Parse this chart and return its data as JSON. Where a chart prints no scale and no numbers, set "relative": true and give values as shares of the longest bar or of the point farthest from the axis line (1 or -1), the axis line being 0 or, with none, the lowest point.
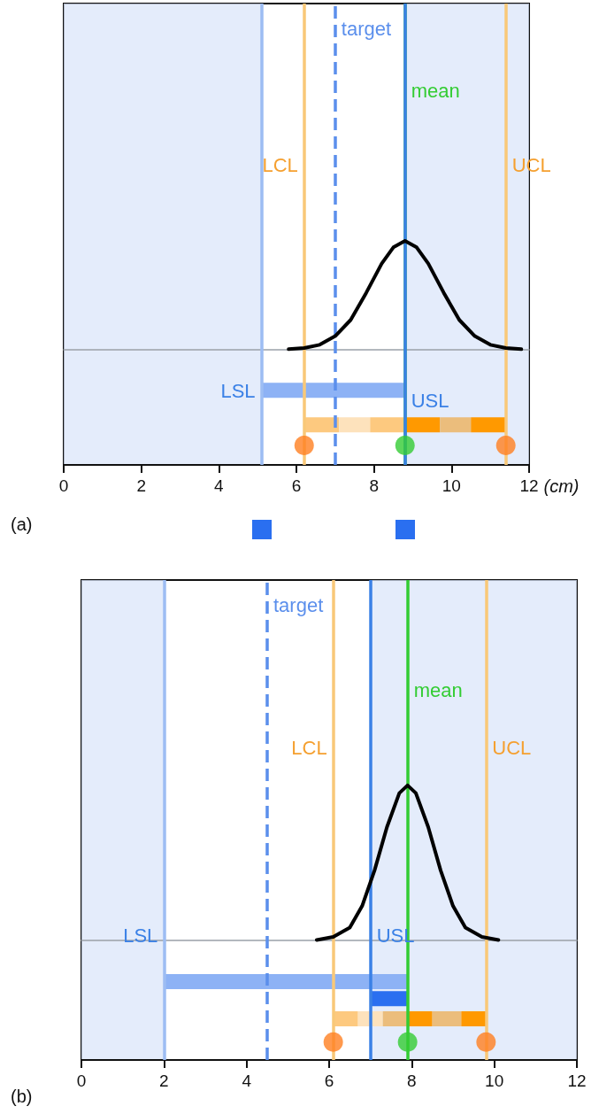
{
  "chart_data": [
    {
      "type": "line",
      "relative": true,
      "xlabel": "(cm)",
      "xlim": [
        0,
        12
      ],
      "xticks": [
        0,
        2,
        4,
        6,
        8,
        10,
        12
      ],
      "tick_labels": "x",
      "grid": false,
      "annotations": [
        "(a)"
      ],
      "bands": [
        {
          "axis": "x",
          "from": 0,
          "to": 5.1,
          "color": "#dbe5fa"
        },
        {
          "axis": "x",
          "from": 8.8,
          "to": 12,
          "color": "#dbe5fa"
        }
      ],
      "ref_lines": [
        {
          "axis": "x",
          "value": 5.1,
          "label": "LSL",
          "color": "#9dbdf3"
        },
        {
          "axis": "x",
          "value": 6.2,
          "label": "LCL",
          "color": "#f9c878"
        },
        {
          "axis": "x",
          "value": 11.4,
          "label": "UCL",
          "color": "#f9c878"
        },
        {
          "axis": "x",
          "value": 7,
          "label": "target",
          "color": "#5b8fec",
          "line_style": "dashed"
        },
        {
          "axis": "x",
          "value": 8.8,
          "label": "mean",
          "color": "#33cc33"
        },
        {
          "axis": "x",
          "value": 8.8,
          "label": "USL",
          "color": "#3a80e6"
        }
      ],
      "series": [
        {
          "color": "#000000",
          "x": [
            5.8,
            6.2,
            6.6,
            7.0,
            7.4,
            7.8,
            8.2,
            8.5,
            8.8,
            9.1,
            9.4,
            9.8,
            10.2,
            10.6,
            11.0,
            11.4,
            11.8
          ],
          "values": [
            0,
            0.01,
            0.04,
            0.12,
            0.27,
            0.52,
            0.79,
            0.94,
            1,
            0.94,
            0.79,
            0.52,
            0.27,
            0.12,
            0.04,
            0.01,
            0
          ]
        },
        {
          "color": "#8db2f5",
          "x": [
            5.1,
            8.8
          ],
          "values": [
            -0.38,
            -0.38
          ]
        },
        {
          "color": "#fdc97f",
          "x": [
            6.2,
            7.1
          ],
          "values": [
            -0.7,
            -0.7
          ]
        },
        {
          "color": "#fde2bc",
          "x": [
            7.1,
            7.9
          ],
          "values": [
            -0.7,
            -0.7
          ]
        },
        {
          "color": "#fdc97f",
          "x": [
            7.9,
            8.8
          ],
          "values": [
            -0.7,
            -0.7
          ]
        },
        {
          "color": "#ff9900",
          "x": [
            8.8,
            9.7
          ],
          "values": [
            -0.7,
            -0.7
          ]
        },
        {
          "color": "#ebbd7c",
          "x": [
            9.7,
            10.5
          ],
          "values": [
            -0.7,
            -0.7
          ]
        },
        {
          "color": "#ff9900",
          "x": [
            10.5,
            11.4
          ],
          "values": [
            -0.7,
            -0.7
          ]
        },
        {
          "type": "scatter",
          "marker": "circle",
          "x": [
            6.2,
            8.8,
            11.4
          ],
          "values": [
            -0.89,
            -0.89,
            -0.89
          ],
          "colors": [
            "#ff8020",
            "#33cc33",
            "#ff8020"
          ]
        }
      ]
    },
    {
      "type": "line",
      "relative": true,
      "xlim": [
        0,
        12
      ],
      "xticks": [
        0,
        2,
        4,
        6,
        8,
        10,
        12
      ],
      "tick_labels": "x",
      "grid": false,
      "annotations": [
        "(b)"
      ],
      "bands": [
        {
          "axis": "x",
          "from": 0,
          "to": 2,
          "color": "#dbe5fa"
        },
        {
          "axis": "x",
          "from": 7,
          "to": 12,
          "color": "#dbe5fa"
        }
      ],
      "ref_lines": [
        {
          "axis": "x",
          "value": 2,
          "label": "LSL",
          "color": "#9dbdf3"
        },
        {
          "axis": "x",
          "value": 6.1,
          "label": "LCL",
          "color": "#f9c878"
        },
        {
          "axis": "x",
          "value": 9.8,
          "label": "UCL",
          "color": "#f9c878"
        },
        {
          "axis": "x",
          "value": 4.5,
          "label": "target",
          "color": "#5b8fec",
          "line_style": "dashed"
        },
        {
          "axis": "x",
          "value": 7.9,
          "label": "mean",
          "color": "#33cc33"
        },
        {
          "axis": "x",
          "value": 7,
          "label": "USL",
          "color": "#3a80e6"
        }
      ],
      "series": [
        {
          "color": "#000000",
          "x": [
            5.7,
            6.1,
            6.5,
            6.8,
            7.1,
            7.4,
            7.7,
            7.9,
            8.1,
            8.4,
            8.7,
            9.0,
            9.3,
            9.7,
            10.1
          ],
          "values": [
            0,
            0.02,
            0.08,
            0.22,
            0.45,
            0.73,
            0.95,
            1,
            0.95,
            0.73,
            0.45,
            0.22,
            0.08,
            0.02,
            0
          ]
        },
        {
          "color": "#8db2f5",
          "x": [
            2,
            7.9
          ],
          "values": [
            -0.27,
            -0.27
          ]
        },
        {
          "color": "#2a6ff0",
          "x": [
            7,
            7.9
          ],
          "values": [
            -0.38,
            -0.38
          ]
        },
        {
          "color": "#fdc97f",
          "x": [
            6.1,
            6.7
          ],
          "values": [
            -0.51,
            -0.51
          ]
        },
        {
          "color": "#fde2bc",
          "x": [
            6.7,
            7.3
          ],
          "values": [
            -0.51,
            -0.51
          ]
        },
        {
          "color": "#ebbd7c",
          "x": [
            7.3,
            7.9
          ],
          "values": [
            -0.51,
            -0.51
          ]
        },
        {
          "color": "#ff9900",
          "x": [
            7.9,
            8.5
          ],
          "values": [
            -0.51,
            -0.51
          ]
        },
        {
          "color": "#ebbd7c",
          "x": [
            8.5,
            9.2
          ],
          "values": [
            -0.51,
            -0.51
          ]
        },
        {
          "color": "#ff9900",
          "x": [
            9.2,
            9.8
          ],
          "values": [
            -0.51,
            -0.51
          ]
        },
        {
          "type": "scatter",
          "marker": "circle",
          "x": [
            6.1,
            7.9,
            9.8
          ],
          "values": [
            -0.66,
            -0.66,
            -0.66
          ],
          "colors": [
            "#ff8020",
            "#33cc33",
            "#ff8020"
          ]
        }
      ]
    }
  ]
}
